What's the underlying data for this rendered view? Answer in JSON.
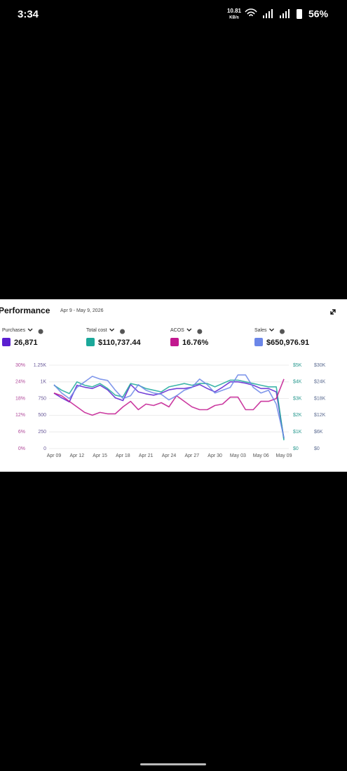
{
  "status_bar": {
    "time": "3:34",
    "speed": "10.81",
    "speed_unit": "KB/s",
    "battery": "56%"
  },
  "chart_data": {
    "type": "line",
    "title": "Performance",
    "subtitle": "Apr 9 - May 9, 2026",
    "categories": [
      "Apr 09",
      null,
      null,
      "Apr 12",
      null,
      null,
      "Apr 15",
      null,
      null,
      "Apr 18",
      null,
      null,
      "Apr 21",
      null,
      null,
      "Apr 24",
      null,
      null,
      "Apr 27",
      null,
      null,
      "Apr 30",
      null,
      null,
      "May 03",
      null,
      null,
      "May 06",
      null,
      null,
      "May 09"
    ],
    "grid": true,
    "axes": {
      "acos": {
        "ylim": [
          0,
          30
        ],
        "yticks": [
          {
            "value": 0,
            "label": "0%"
          },
          {
            "value": 6,
            "label": "6%"
          },
          {
            "value": 12,
            "label": "12%"
          },
          {
            "value": 18,
            "label": "18%"
          },
          {
            "value": 24,
            "label": "24%"
          },
          {
            "value": 30,
            "label": "30%"
          }
        ]
      },
      "purchases": {
        "ylim": [
          0,
          1250
        ],
        "yticks": [
          0,
          250,
          500,
          750,
          {
            "value": 1000,
            "label": "1K"
          },
          {
            "value": 1250,
            "label": "1.25K"
          }
        ]
      },
      "cost": {
        "ylim": [
          0,
          5000
        ],
        "yticks": [
          {
            "value": 0,
            "label": "$0"
          },
          {
            "value": 1000,
            "label": "$1K"
          },
          {
            "value": 2000,
            "label": "$2K"
          },
          {
            "value": 3000,
            "label": "$3K"
          },
          {
            "value": 4000,
            "label": "$4K"
          },
          {
            "value": 5000,
            "label": "$5K"
          }
        ]
      },
      "sales": {
        "ylim": [
          0,
          30000
        ],
        "yticks": [
          {
            "value": 0,
            "label": "$0"
          },
          {
            "value": 6000,
            "label": "$6K"
          },
          {
            "value": 12000,
            "label": "$12K"
          },
          {
            "value": 18000,
            "label": "$18K"
          },
          {
            "value": 24000,
            "label": "$24K"
          },
          {
            "value": 30000,
            "label": "$30K"
          }
        ]
      }
    },
    "series": [
      {
        "name": "Purchases",
        "total": "26,871",
        "color": "#5b1fd0",
        "axis": "purchases",
        "values": [
          830,
          760,
          700,
          950,
          920,
          900,
          950,
          880,
          760,
          720,
          960,
          850,
          820,
          800,
          830,
          880,
          900,
          900,
          920,
          960,
          900,
          850,
          920,
          1000,
          1000,
          980,
          950,
          900,
          900,
          850,
          150
        ]
      },
      {
        "name": "Total cost",
        "total": "$110,737.44",
        "color": "#1ba89a",
        "axis": "cost",
        "values": [
          3800,
          3500,
          3300,
          4000,
          3800,
          3700,
          3900,
          3600,
          3200,
          3100,
          3900,
          3800,
          3600,
          3500,
          3400,
          3700,
          3800,
          3900,
          3800,
          3900,
          3900,
          3700,
          3900,
          4100,
          4100,
          4000,
          3900,
          3800,
          3700,
          3700,
          500
        ]
      },
      {
        "name": "ACOS",
        "total": "16.76%",
        "color": "#c2188f",
        "axis": "acos",
        "values": [
          20,
          19,
          17,
          15,
          13,
          12,
          13,
          12.5,
          12.5,
          15,
          17,
          14,
          16,
          15.5,
          16.5,
          15,
          19,
          17,
          15,
          14,
          14,
          15.5,
          16,
          18.5,
          18.5,
          14,
          14,
          17,
          17,
          18,
          25
        ]
      },
      {
        "name": "Sales",
        "total": "$650,976.91",
        "color": "#6b86e8",
        "axis": "sales",
        "values": [
          23000,
          20000,
          18000,
          22000,
          24000,
          26000,
          25000,
          24500,
          21000,
          18000,
          19000,
          23000,
          21000,
          20000,
          19500,
          17500,
          19000,
          21000,
          22000,
          25000,
          23000,
          20000,
          21000,
          22000,
          26500,
          26500,
          22000,
          20000,
          21000,
          16000,
          4000
        ]
      }
    ]
  }
}
